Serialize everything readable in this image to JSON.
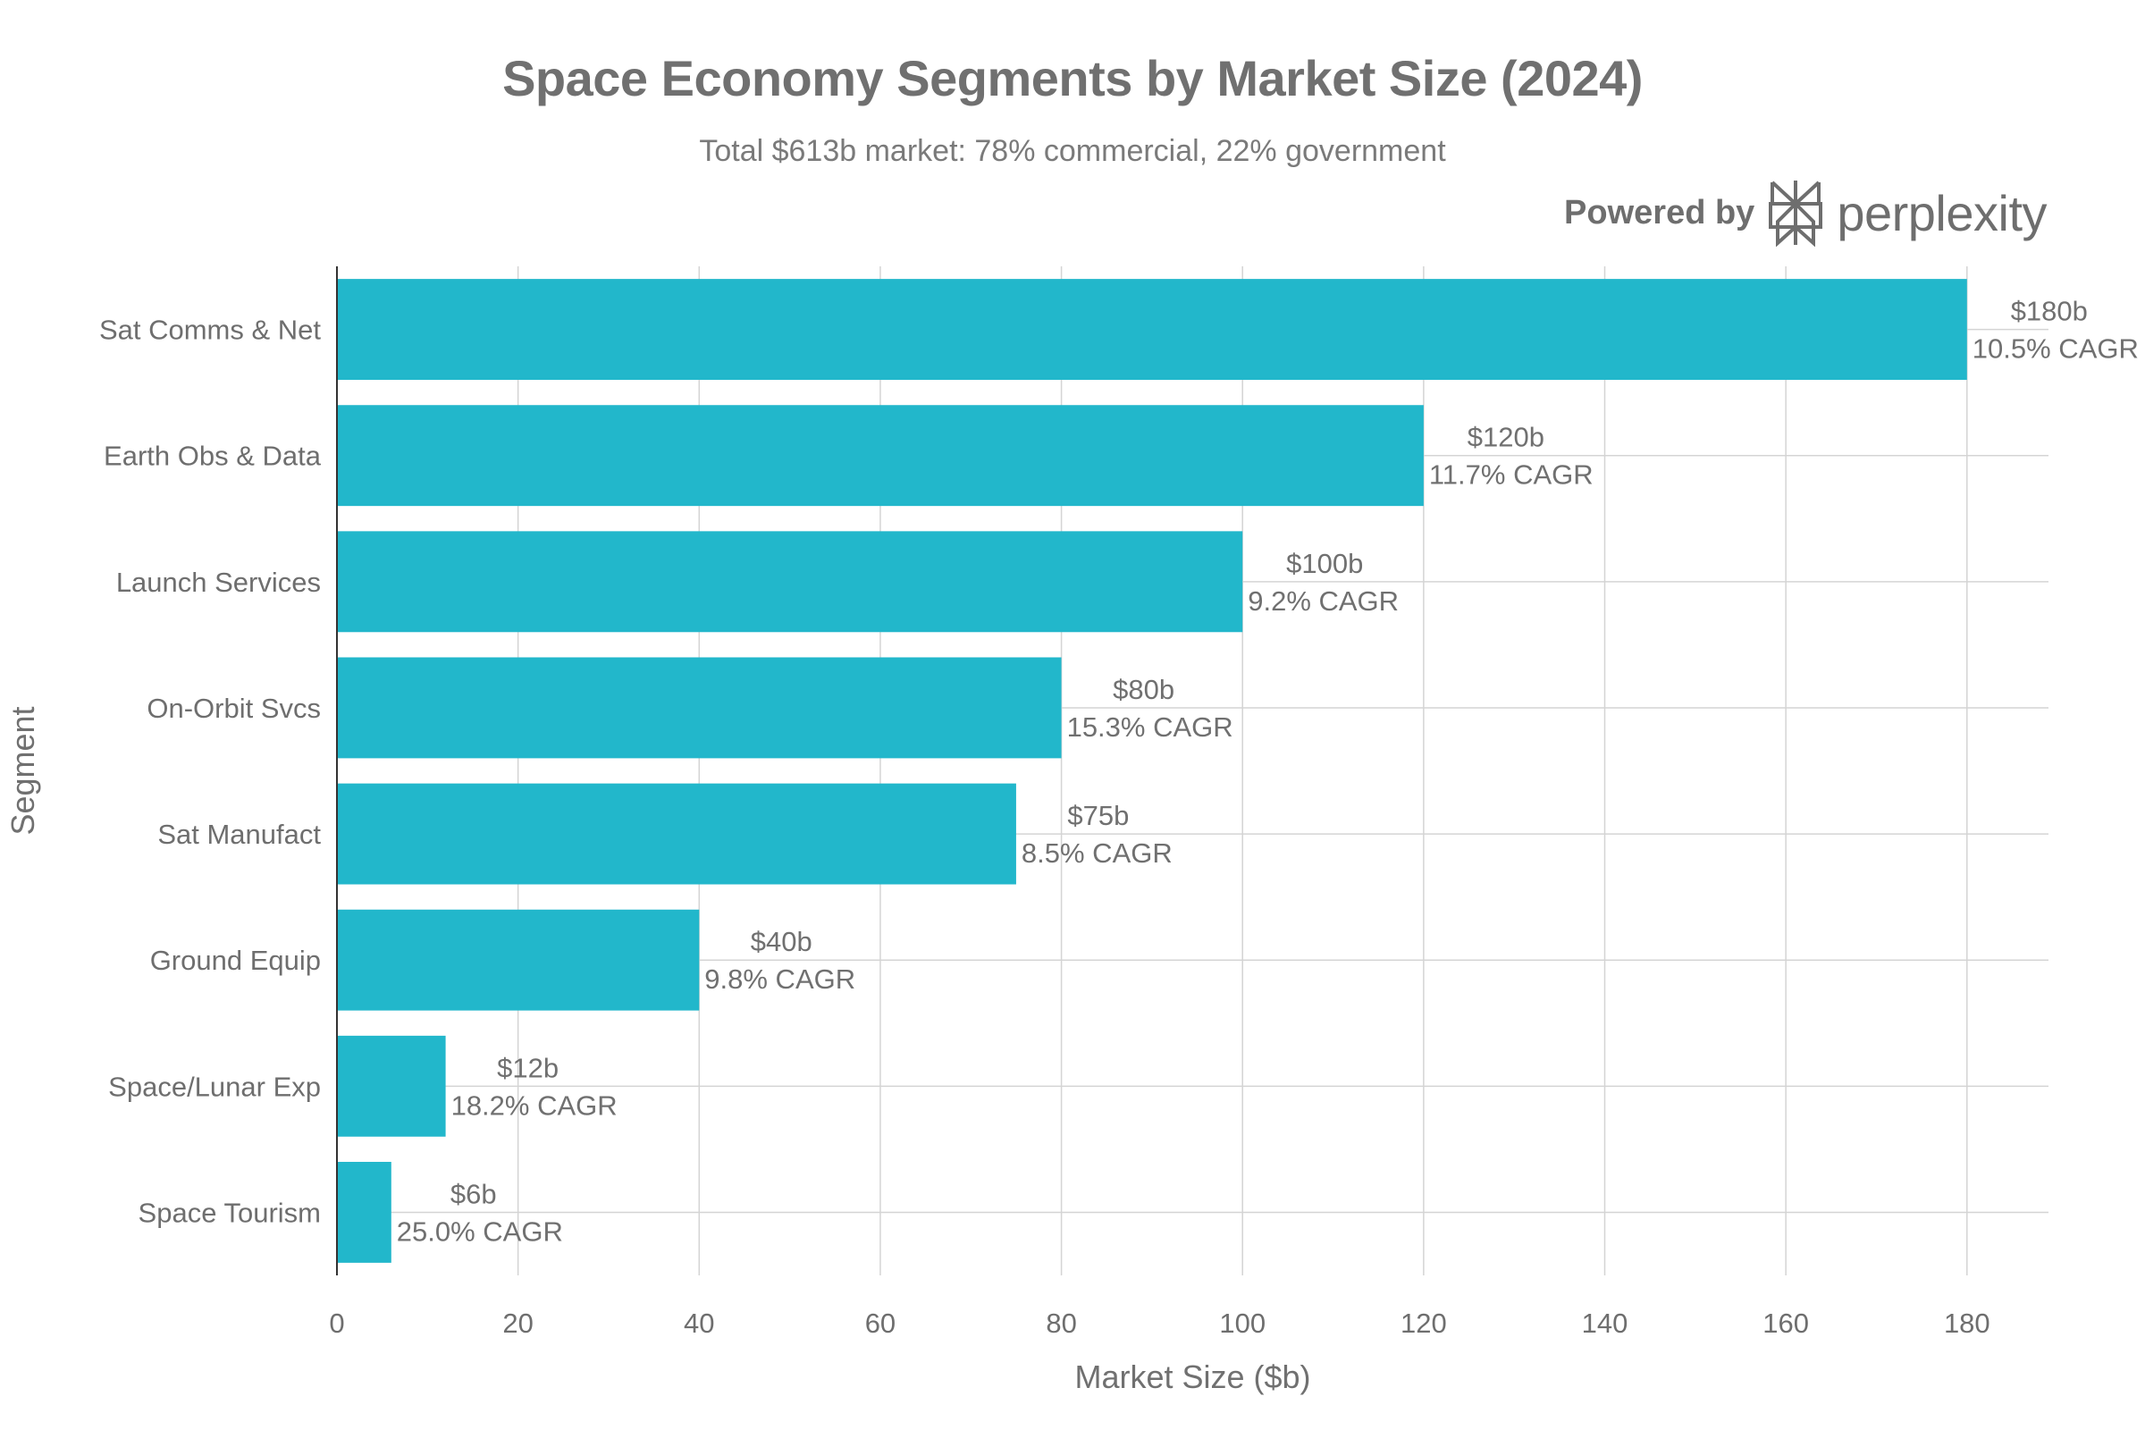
{
  "header": {
    "title": "Space Economy Segments by Market Size (2024)",
    "subtitle": "Total $613b market: 78% commercial, 22% government",
    "powered_by": "Powered by",
    "brand": "perplexity"
  },
  "colors": {
    "bar": "#22b7cb",
    "grid": "#d4d4d4",
    "axis": "#333333",
    "text": "#6e6e6e"
  },
  "chart_data": {
    "type": "bar",
    "orientation": "horizontal",
    "title": "Space Economy Segments by Market Size (2024)",
    "subtitle": "Total $613b market: 78% commercial, 22% government",
    "xlabel": "Market Size ($b)",
    "ylabel": "Segment",
    "xlim": [
      0,
      189
    ],
    "xticks": [
      0,
      20,
      40,
      60,
      80,
      100,
      120,
      140,
      160,
      180
    ],
    "grid": true,
    "categories": [
      "Sat Comms & Net",
      "Earth Obs & Data",
      "Launch Services",
      "On-Orbit Svcs",
      "Sat Manufact",
      "Ground Equip",
      "Space/Lunar Exp",
      "Space Tourism"
    ],
    "values": [
      180,
      120,
      100,
      80,
      75,
      40,
      12,
      6
    ],
    "value_labels": [
      "$180b",
      "$120b",
      "$100b",
      "$80b",
      "$75b",
      "$40b",
      "$12b",
      "$6b"
    ],
    "cagr_labels": [
      "10.5% CAGR",
      "11.7% CAGR",
      "9.2% CAGR",
      "15.3% CAGR",
      "8.5% CAGR",
      "9.8% CAGR",
      "18.2% CAGR",
      "25.0% CAGR"
    ]
  }
}
